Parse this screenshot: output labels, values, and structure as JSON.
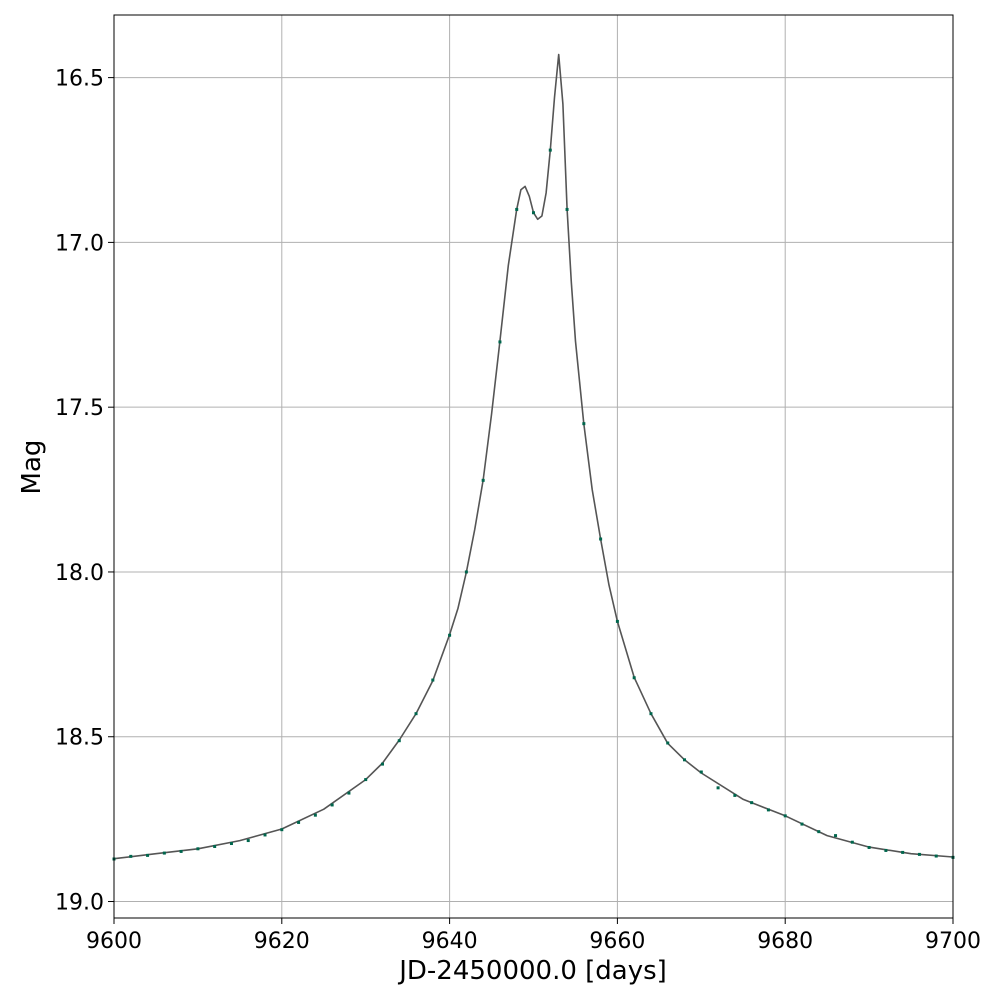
{
  "chart_data": {
    "type": "line",
    "title": "",
    "xlabel": "JD-2450000.0 [days]",
    "ylabel": "Mag",
    "xlim": [
      9600,
      9700
    ],
    "ylim": [
      19.05,
      16.31
    ],
    "y_inverted": true,
    "grid": true,
    "xticks": [
      9600,
      9620,
      9640,
      9660,
      9680,
      9700
    ],
    "xtick_labels": [
      "9600",
      "9620",
      "9640",
      "9660",
      "9680",
      "9700"
    ],
    "yticks": [
      16.5,
      17.0,
      17.5,
      18.0,
      18.5,
      19.0
    ],
    "ytick_labels": [
      "16.5",
      "17.0",
      "17.5",
      "18.0",
      "18.5",
      "19.0"
    ],
    "series": [
      {
        "kind": "model-curve",
        "color": "#555555",
        "x": [
          9600,
          9605,
          9610,
          9615,
          9620,
          9625,
          9630,
          9632,
          9634,
          9636,
          9638,
          9640,
          9641,
          9642,
          9643,
          9644,
          9645,
          9646,
          9647,
          9648,
          9648.5,
          9649,
          9649.5,
          9650,
          9650.5,
          9651,
          9651.5,
          9652,
          9652.5,
          9653,
          9653.5,
          9654,
          9654.5,
          9655,
          9656,
          9657,
          9658,
          9659,
          9660,
          9662,
          9664,
          9666,
          9668,
          9670,
          9675,
          9680,
          9685,
          9690,
          9695,
          9700
        ],
        "y": [
          18.87,
          18.855,
          18.84,
          18.815,
          18.78,
          18.72,
          18.63,
          18.58,
          18.51,
          18.43,
          18.33,
          18.19,
          18.11,
          18.0,
          17.87,
          17.72,
          17.52,
          17.3,
          17.07,
          16.9,
          16.84,
          16.83,
          16.86,
          16.91,
          16.93,
          16.92,
          16.85,
          16.72,
          16.56,
          16.43,
          16.58,
          16.9,
          17.12,
          17.3,
          17.55,
          17.75,
          17.9,
          18.04,
          18.15,
          18.32,
          18.43,
          18.52,
          18.57,
          18.61,
          18.69,
          18.74,
          18.8,
          18.835,
          18.855,
          18.865
        ]
      },
      {
        "kind": "observations",
        "color": "#00664d",
        "x": [
          9600,
          9602,
          9604,
          9606,
          9608,
          9610,
          9612,
          9614,
          9616,
          9618,
          9620,
          9622,
          9624,
          9626,
          9628,
          9630,
          9632,
          9634,
          9636,
          9638,
          9640,
          9642,
          9644,
          9646,
          9648,
          9650,
          9652,
          9654,
          9656,
          9658,
          9660,
          9662,
          9664,
          9666,
          9668,
          9670,
          9672,
          9674,
          9676,
          9678,
          9680,
          9682,
          9684,
          9686,
          9688,
          9690,
          9692,
          9694,
          9696,
          9698,
          9700
        ],
        "y": [
          18.871,
          18.863,
          18.86,
          18.853,
          18.848,
          18.84,
          18.833,
          18.824,
          18.815,
          18.798,
          18.782,
          18.76,
          18.738,
          18.707,
          18.671,
          18.63,
          18.583,
          18.512,
          18.43,
          18.328,
          18.192,
          18.0,
          17.722,
          17.302,
          16.9,
          16.91,
          16.72,
          16.9,
          17.55,
          17.9,
          18.15,
          18.321,
          18.43,
          18.519,
          18.57,
          18.607,
          18.655,
          18.678,
          18.7,
          18.722,
          18.74,
          18.765,
          18.788,
          18.8,
          18.82,
          18.836,
          18.845,
          18.851,
          18.857,
          18.862,
          18.866
        ]
      }
    ]
  }
}
